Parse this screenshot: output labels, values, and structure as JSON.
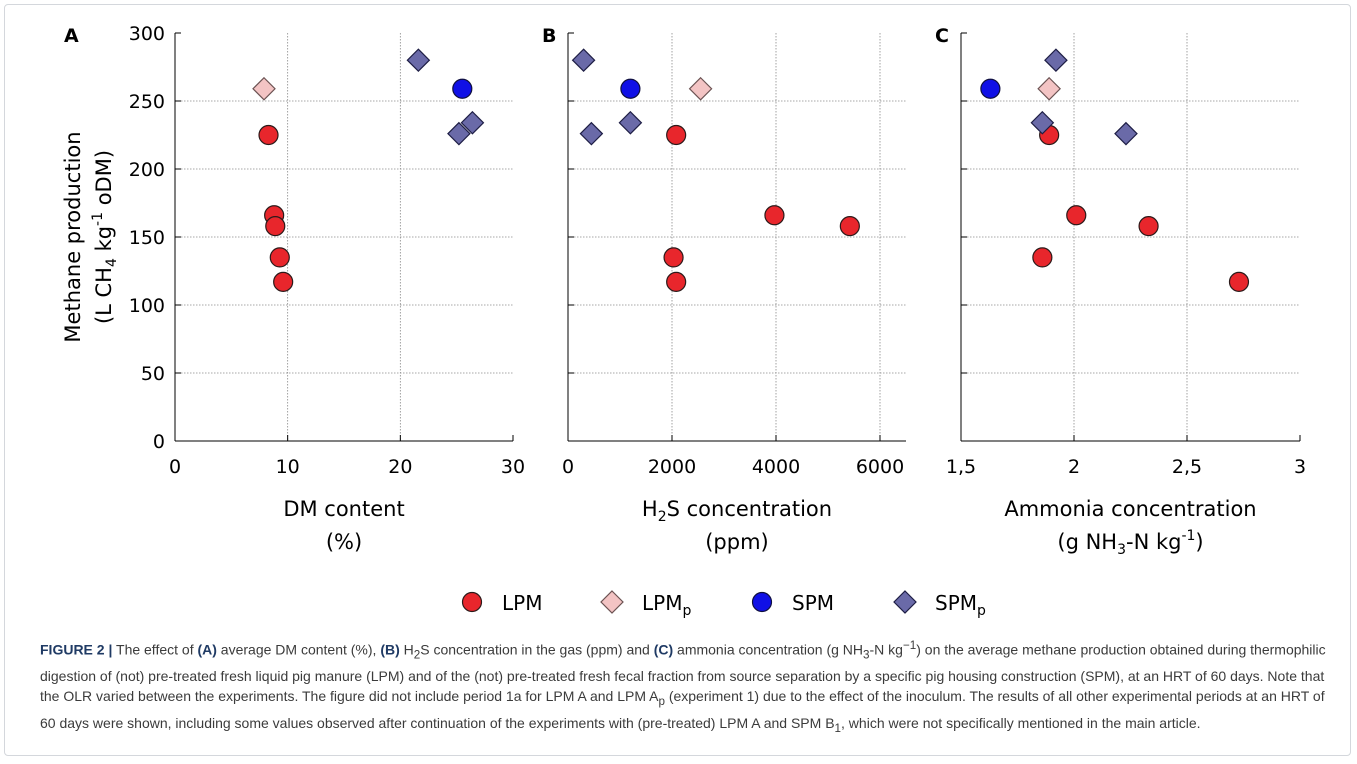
{
  "y_axis": {
    "label_line1": "Methane production",
    "label_line2_prefix": "(L CH",
    "label_line2_sub": "4",
    "label_line2_mid": " kg",
    "label_line2_sup": "-1",
    "label_line2_suffix": " oDM)"
  },
  "chart_data": [
    {
      "type": "scatter",
      "panel": "A",
      "xlabel_line1": "DM content",
      "xlabel_line2": "(%)",
      "xlim": [
        0,
        30
      ],
      "xticks": [
        0,
        10,
        20,
        30
      ],
      "xtick_labels": [
        "0",
        "10",
        "20",
        "30"
      ],
      "ylim": [
        0,
        300
      ],
      "yticks": [
        0,
        50,
        100,
        150,
        200,
        250,
        300
      ],
      "ytick_labels": [
        "0",
        "50",
        "100",
        "150",
        "200",
        "250",
        "300"
      ],
      "grid": true,
      "series": [
        {
          "name": "LPM",
          "points": [
            [
              8.3,
              225
            ],
            [
              8.8,
              166
            ],
            [
              8.9,
              158
            ],
            [
              9.3,
              135
            ],
            [
              9.6,
              117
            ]
          ]
        },
        {
          "name": "LPMp",
          "points": [
            [
              7.9,
              259
            ]
          ]
        },
        {
          "name": "SPM",
          "points": [
            [
              25.5,
              259
            ]
          ]
        },
        {
          "name": "SPMp",
          "points": [
            [
              21.6,
              280
            ],
            [
              25.2,
              226
            ],
            [
              26.4,
              234
            ]
          ]
        }
      ]
    },
    {
      "type": "scatter",
      "panel": "B",
      "xlabel_prefix": "H",
      "xlabel_sub": "2",
      "xlabel_suffix": "S concentration",
      "xlabel_line2": "(ppm)",
      "xlim": [
        0,
        6500
      ],
      "xticks": [
        0,
        2000,
        4000,
        6000
      ],
      "xtick_labels": [
        "0",
        "2000",
        "4000",
        "6000"
      ],
      "ylim": [
        0,
        300
      ],
      "yticks": [
        0,
        50,
        100,
        150,
        200,
        250,
        300
      ],
      "grid": true,
      "series": [
        {
          "name": "LPM",
          "points": [
            [
              2080,
              225
            ],
            [
              3970,
              166
            ],
            [
              5420,
              158
            ],
            [
              2030,
              135
            ],
            [
              2080,
              117
            ]
          ]
        },
        {
          "name": "LPMp",
          "points": [
            [
              2550,
              259
            ]
          ]
        },
        {
          "name": "SPM",
          "points": [
            [
              1200,
              259
            ]
          ]
        },
        {
          "name": "SPMp",
          "points": [
            [
              300,
              280
            ],
            [
              450,
              226
            ],
            [
              1200,
              234
            ]
          ]
        }
      ]
    },
    {
      "type": "scatter",
      "panel": "C",
      "xlabel_line1": "Ammonia concentration",
      "xlabel_line2_prefix": "(g NH",
      "xlabel_line2_sub": "3",
      "xlabel_line2_mid": "-N kg",
      "xlabel_line2_sup": "-1",
      "xlabel_line2_suffix": ")",
      "xlim": [
        1.5,
        3
      ],
      "xticks": [
        1.5,
        2,
        2.5,
        3
      ],
      "xtick_labels": [
        "1,5",
        "2",
        "2,5",
        "3"
      ],
      "ylim": [
        0,
        300
      ],
      "yticks": [
        0,
        50,
        100,
        150,
        200,
        250,
        300
      ],
      "grid": true,
      "series": [
        {
          "name": "LPM",
          "points": [
            [
              1.89,
              225
            ],
            [
              2.01,
              166
            ],
            [
              2.33,
              158
            ],
            [
              1.86,
              135
            ],
            [
              2.73,
              117
            ]
          ]
        },
        {
          "name": "LPMp",
          "points": [
            [
              1.89,
              259
            ]
          ]
        },
        {
          "name": "SPM",
          "points": [
            [
              1.63,
              259
            ]
          ]
        },
        {
          "name": "SPMp",
          "points": [
            [
              1.92,
              280
            ],
            [
              2.23,
              226
            ],
            [
              1.86,
              234
            ]
          ]
        }
      ]
    }
  ],
  "legend": [
    {
      "series": "LPM",
      "label": "LPM",
      "sub": ""
    },
    {
      "series": "LPMp",
      "label": "LPM",
      "sub": "p"
    },
    {
      "series": "SPM",
      "label": "SPM",
      "sub": ""
    },
    {
      "series": "SPMp",
      "label": "SPM",
      "sub": "p"
    }
  ],
  "styles": {
    "LPM": {
      "shape": "circle",
      "fill": "#e8262c",
      "stroke": "#2b1a1a"
    },
    "LPMp": {
      "shape": "diamond",
      "fill": "#f3c4c4",
      "stroke": "#6b5252"
    },
    "SPM": {
      "shape": "circle",
      "fill": "#1010e6",
      "stroke": "#101040"
    },
    "SPMp": {
      "shape": "diamond",
      "fill": "#6a6aa8",
      "stroke": "#1d1d44"
    }
  },
  "caption": {
    "label": "FIGURE 2 |",
    "t1": " The effect of ",
    "a": "(A)",
    "t2": " average DM content (%), ",
    "b": "(B)",
    "t3": " H",
    "t3_sub": "2",
    "t4": "S concentration in the gas (ppm) and ",
    "c": "(C)",
    "t5": " ammonia concentration (g NH",
    "t5_sub": "3",
    "t6": "-N kg",
    "t6_sup": "−1",
    "t7": ") on the average methane production obtained during thermophilic digestion of (not) pre-treated fresh liquid pig manure (LPM) and of the (not) pre-treated fresh fecal fraction from source separation by a specific pig housing construction (SPM), at an HRT of 60 days. Note that the OLR varied between the experiments. The figure did not include period 1a for LPM A and LPM A",
    "t7_sub": "p",
    "t8": " (experiment 1) due to the effect of the inoculum. The results of all other experimental periods at an HRT of 60 days were shown, including some values observed after continuation of the experiments with (pre-treated) LPM A and SPM B",
    "t8_sub": "1",
    "t9": ", which were not specifically mentioned in the main article."
  }
}
